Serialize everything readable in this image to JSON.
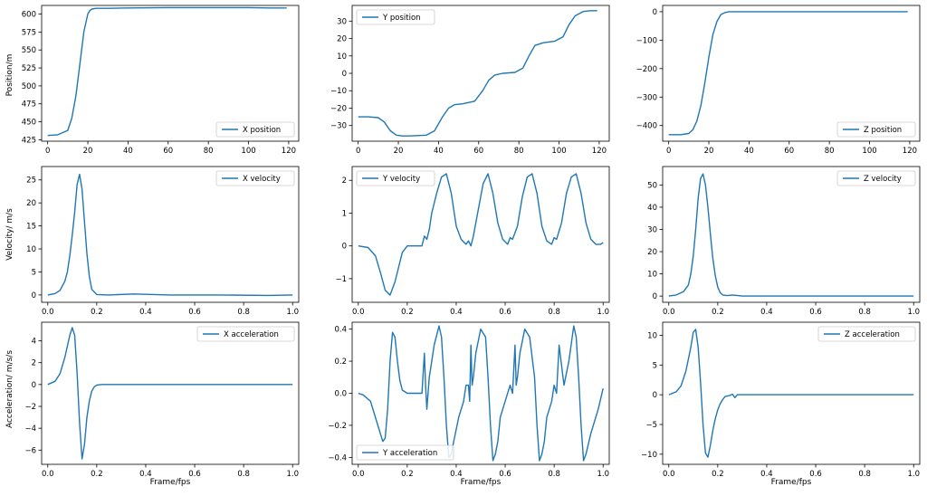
{
  "figure": {
    "row_labels": [
      "Position/m",
      "Velocity/ m/s",
      "Acceleration/ m/s/s"
    ],
    "xlabel": "Frame/fps",
    "line_color": "#1f77b4"
  },
  "chart_data": [
    {
      "id": "x-position",
      "type": "line",
      "legend": "X position",
      "legend_loc": "bottom-right",
      "xlim": [
        -3,
        125
      ],
      "ylim": [
        423,
        612
      ],
      "xticks": [
        0,
        20,
        40,
        60,
        80,
        100,
        120
      ],
      "xticklabels": [
        "0",
        "20",
        "40",
        "60",
        "80",
        "100",
        "120"
      ],
      "yticks": [
        425,
        450,
        475,
        500,
        525,
        550,
        575,
        600
      ],
      "yticklabels": [
        "425",
        "450",
        "475",
        "500",
        "525",
        "550",
        "575",
        "600"
      ],
      "x": [
        0,
        5,
        10,
        12,
        14,
        16,
        18,
        20,
        21,
        22,
        24,
        30,
        40,
        60,
        80,
        100,
        110,
        119
      ],
      "y": [
        431,
        432,
        438,
        455,
        485,
        530,
        575,
        600,
        605,
        607,
        608,
        608,
        608.5,
        609,
        609,
        609,
        608.5,
        608.5
      ]
    },
    {
      "id": "y-position",
      "type": "line",
      "legend": "Y position",
      "legend_loc": "top-left",
      "xlim": [
        -3,
        125
      ],
      "ylim": [
        -39,
        39
      ],
      "xticks": [
        0,
        20,
        40,
        60,
        80,
        100,
        120
      ],
      "xticklabels": [
        "0",
        "20",
        "40",
        "60",
        "80",
        "100",
        "120"
      ],
      "yticks": [
        -30,
        -20,
        -10,
        0,
        10,
        20,
        30
      ],
      "yticklabels": [
        "−30",
        "−20",
        "−10",
        "0",
        "10",
        "20",
        "30"
      ],
      "x": [
        0,
        5,
        10,
        13,
        16,
        19,
        22,
        26,
        34,
        38,
        42,
        45,
        48,
        52,
        58,
        62,
        65,
        68,
        72,
        78,
        82,
        85,
        88,
        92,
        98,
        102,
        105,
        108,
        112,
        116,
        119
      ],
      "y": [
        -25,
        -25,
        -25.5,
        -28,
        -33,
        -35.5,
        -36,
        -36,
        -35.5,
        -33,
        -25,
        -20,
        -18,
        -17.5,
        -16,
        -10,
        -4,
        -1,
        0,
        0.5,
        3,
        10,
        16,
        17.5,
        18.5,
        21,
        28,
        33,
        35.5,
        36,
        36
      ]
    },
    {
      "id": "z-position",
      "type": "line",
      "legend": "Z position",
      "legend_loc": "bottom-right",
      "xlim": [
        -3,
        125
      ],
      "ylim": [
        -455,
        22
      ],
      "xticks": [
        0,
        20,
        40,
        60,
        80,
        100,
        120
      ],
      "xticklabels": [
        "0",
        "20",
        "40",
        "60",
        "80",
        "100",
        "120"
      ],
      "yticks": [
        -400,
        -300,
        -200,
        -100,
        0
      ],
      "yticklabels": [
        "−400",
        "−300",
        "−200",
        "−100",
        "0"
      ],
      "x": [
        0,
        6,
        10,
        12,
        14,
        16,
        18,
        20,
        22,
        24,
        26,
        28,
        30,
        35,
        40,
        60,
        80,
        100,
        119
      ],
      "y": [
        -432,
        -432,
        -428,
        -415,
        -385,
        -330,
        -250,
        -160,
        -80,
        -35,
        -10,
        -3,
        0,
        0,
        0,
        0,
        0,
        0,
        0
      ]
    },
    {
      "id": "x-velocity",
      "type": "line",
      "legend": "X velocity",
      "legend_loc": "top-right",
      "xlim": [
        -0.025,
        1.025
      ],
      "ylim": [
        -1.6,
        27.9
      ],
      "xticks": [
        0,
        0.2,
        0.4,
        0.6,
        0.8,
        1.0
      ],
      "xticklabels": [
        "0.0",
        "0.2",
        "0.4",
        "0.6",
        "0.8",
        "1.0"
      ],
      "yticks": [
        0,
        5,
        10,
        15,
        20,
        25
      ],
      "yticklabels": [
        "0",
        "5",
        "10",
        "15",
        "20",
        "25"
      ],
      "x": [
        0,
        0.03,
        0.05,
        0.07,
        0.08,
        0.09,
        0.1,
        0.11,
        0.12,
        0.13,
        0.14,
        0.15,
        0.16,
        0.17,
        0.18,
        0.2,
        0.25,
        0.35,
        0.5,
        0.7,
        0.9,
        1.0
      ],
      "y": [
        0,
        0.3,
        1,
        3,
        5,
        8.5,
        13,
        18,
        24,
        26.2,
        23,
        16,
        9,
        4,
        1.2,
        0.1,
        0,
        0.2,
        0,
        0,
        -0.1,
        0
      ]
    },
    {
      "id": "y-velocity",
      "type": "line",
      "legend": "Y velocity",
      "legend_loc": "top-left",
      "xlim": [
        -0.025,
        1.025
      ],
      "ylim": [
        -1.72,
        2.42
      ],
      "xticks": [
        0,
        0.2,
        0.4,
        0.6,
        0.8,
        1.0
      ],
      "xticklabels": [
        "0.0",
        "0.2",
        "0.4",
        "0.6",
        "0.8",
        "1.0"
      ],
      "yticks": [
        -1,
        0,
        1,
        2
      ],
      "yticklabels": [
        "−1",
        "0",
        "1",
        "2"
      ],
      "x": [
        0,
        0.04,
        0.07,
        0.09,
        0.11,
        0.13,
        0.15,
        0.18,
        0.2,
        0.23,
        0.26,
        0.27,
        0.28,
        0.29,
        0.3,
        0.32,
        0.34,
        0.36,
        0.38,
        0.4,
        0.42,
        0.44,
        0.45,
        0.46,
        0.47,
        0.49,
        0.51,
        0.53,
        0.55,
        0.57,
        0.59,
        0.61,
        0.62,
        0.63,
        0.65,
        0.67,
        0.69,
        0.71,
        0.73,
        0.75,
        0.77,
        0.79,
        0.8,
        0.81,
        0.83,
        0.85,
        0.87,
        0.89,
        0.91,
        0.93,
        0.95,
        0.97,
        0.99,
        1.0
      ],
      "y": [
        0,
        -0.05,
        -0.3,
        -0.8,
        -1.35,
        -1.5,
        -1.1,
        -0.2,
        0,
        0,
        0,
        0.3,
        0.2,
        0.5,
        1.0,
        1.6,
        2.1,
        2.2,
        1.6,
        0.6,
        0.2,
        0.05,
        0.15,
        0,
        0.3,
        1.1,
        1.9,
        2.2,
        1.6,
        0.7,
        0.2,
        0.05,
        0.25,
        0.2,
        0.6,
        1.5,
        2.1,
        2.2,
        1.6,
        0.6,
        0.15,
        0.05,
        0.25,
        0.2,
        0.7,
        1.6,
        2.1,
        2.2,
        1.6,
        0.7,
        0.2,
        0.05,
        0.05,
        0.1
      ]
    },
    {
      "id": "z-velocity",
      "type": "line",
      "legend": "Z velocity",
      "legend_loc": "top-right",
      "xlim": [
        -0.025,
        1.025
      ],
      "ylim": [
        -2.8,
        58.3
      ],
      "xticks": [
        0,
        0.2,
        0.4,
        0.6,
        0.8,
        1.0
      ],
      "xticklabels": [
        "0.0",
        "0.2",
        "0.4",
        "0.6",
        "0.8",
        "1.0"
      ],
      "yticks": [
        0,
        10,
        20,
        30,
        40,
        50
      ],
      "yticklabels": [
        "0",
        "10",
        "20",
        "30",
        "40",
        "50"
      ],
      "x": [
        0,
        0.03,
        0.06,
        0.08,
        0.09,
        0.1,
        0.11,
        0.12,
        0.13,
        0.14,
        0.15,
        0.16,
        0.17,
        0.18,
        0.19,
        0.2,
        0.21,
        0.22,
        0.24,
        0.26,
        0.3,
        0.5,
        0.7,
        1.0
      ],
      "y": [
        0,
        0.5,
        2,
        5,
        10,
        18,
        30,
        44,
        53,
        55,
        50,
        40,
        28,
        17,
        9,
        4,
        1.5,
        0.5,
        0.2,
        0.5,
        0,
        0,
        0,
        0
      ]
    },
    {
      "id": "x-acceleration",
      "type": "line",
      "legend": "X acceleration",
      "legend_loc": "top-right",
      "xlim": [
        -0.025,
        1.025
      ],
      "ylim": [
        -7.3,
        5.7
      ],
      "xticks": [
        0,
        0.2,
        0.4,
        0.6,
        0.8,
        1.0
      ],
      "xticklabels": [
        "0.0",
        "0.2",
        "0.4",
        "0.6",
        "0.8",
        "1.0"
      ],
      "yticks": [
        -6,
        -4,
        -2,
        0,
        2,
        4
      ],
      "yticklabels": [
        "−6",
        "−4",
        "−2",
        "0",
        "2",
        "4"
      ],
      "x": [
        0,
        0.03,
        0.05,
        0.07,
        0.09,
        0.1,
        0.11,
        0.12,
        0.13,
        0.14,
        0.15,
        0.16,
        0.17,
        0.18,
        0.19,
        0.2,
        0.22,
        0.3,
        0.5,
        0.7,
        0.9,
        1.0
      ],
      "y": [
        0,
        0.3,
        1,
        2.5,
        4.5,
        5.2,
        4.5,
        1,
        -3.5,
        -6.8,
        -5.5,
        -3,
        -1.5,
        -0.6,
        -0.2,
        -0.05,
        0,
        0,
        0,
        0,
        0,
        0
      ]
    },
    {
      "id": "y-acceleration",
      "type": "line",
      "legend": "Y acceleration",
      "legend_loc": "bottom-left",
      "xlim": [
        -0.025,
        1.025
      ],
      "ylim": [
        -0.443,
        0.443
      ],
      "xticks": [
        0,
        0.2,
        0.4,
        0.6,
        0.8,
        1.0
      ],
      "xticklabels": [
        "0.0",
        "0.2",
        "0.4",
        "0.6",
        "0.8",
        "1.0"
      ],
      "yticks": [
        -0.4,
        -0.2,
        0,
        0.2,
        0.4
      ],
      "yticklabels": [
        "−0.4",
        "−0.2",
        "0.0",
        "0.2",
        "0.4"
      ],
      "x": [
        0,
        0.02,
        0.05,
        0.08,
        0.1,
        0.11,
        0.12,
        0.13,
        0.14,
        0.15,
        0.16,
        0.17,
        0.18,
        0.2,
        0.23,
        0.26,
        0.27,
        0.275,
        0.28,
        0.29,
        0.3,
        0.31,
        0.33,
        0.34,
        0.35,
        0.36,
        0.37,
        0.38,
        0.39,
        0.41,
        0.43,
        0.44,
        0.45,
        0.455,
        0.46,
        0.465,
        0.47,
        0.48,
        0.5,
        0.52,
        0.53,
        0.54,
        0.55,
        0.56,
        0.57,
        0.58,
        0.6,
        0.62,
        0.63,
        0.64,
        0.645,
        0.65,
        0.66,
        0.68,
        0.7,
        0.72,
        0.73,
        0.74,
        0.75,
        0.76,
        0.77,
        0.79,
        0.8,
        0.81,
        0.82,
        0.84,
        0.86,
        0.88,
        0.89,
        0.9,
        0.91,
        0.92,
        0.93,
        0.95,
        0.98,
        1.0
      ],
      "y": [
        0,
        -0.01,
        -0.05,
        -0.2,
        -0.3,
        -0.28,
        -0.1,
        0.2,
        0.38,
        0.35,
        0.2,
        0.08,
        0.02,
        0,
        0,
        0,
        0.25,
        0.05,
        -0.1,
        0.1,
        0.2,
        0.3,
        0.42,
        0.35,
        0.1,
        -0.2,
        -0.4,
        -0.38,
        -0.3,
        -0.15,
        -0.05,
        0.05,
        0.05,
        -0.05,
        0.3,
        0.05,
        0.1,
        0.25,
        0.4,
        0.35,
        0.1,
        -0.2,
        -0.42,
        -0.38,
        -0.3,
        -0.15,
        -0.05,
        0.05,
        0,
        0.3,
        0.05,
        0.1,
        0.25,
        0.4,
        0.35,
        0.1,
        -0.2,
        -0.42,
        -0.38,
        -0.3,
        -0.15,
        -0.05,
        0.05,
        0,
        0.3,
        0.05,
        0.2,
        0.42,
        0.35,
        0.1,
        -0.2,
        -0.42,
        -0.38,
        -0.25,
        -0.1,
        0.03
      ]
    },
    {
      "id": "z-acceleration",
      "type": "line",
      "legend": "Z acceleration",
      "legend_loc": "top-right",
      "xlim": [
        -0.025,
        1.025
      ],
      "ylim": [
        -11.7,
        12.2
      ],
      "xticks": [
        0,
        0.2,
        0.4,
        0.6,
        0.8,
        1.0
      ],
      "xticklabels": [
        "0.0",
        "0.2",
        "0.4",
        "0.6",
        "0.8",
        "1.0"
      ],
      "yticks": [
        -10,
        -5,
        0,
        5,
        10
      ],
      "yticklabels": [
        "−10",
        "−5",
        "0",
        "5",
        "10"
      ],
      "x": [
        0,
        0.03,
        0.05,
        0.07,
        0.09,
        0.1,
        0.11,
        0.12,
        0.13,
        0.14,
        0.15,
        0.16,
        0.17,
        0.18,
        0.19,
        0.2,
        0.21,
        0.22,
        0.23,
        0.24,
        0.25,
        0.26,
        0.27,
        0.28,
        0.3,
        0.5,
        0.7,
        1.0
      ],
      "y": [
        0,
        0.5,
        1.5,
        4,
        8,
        10.5,
        11,
        8,
        2,
        -5,
        -9.8,
        -10.5,
        -8.5,
        -6,
        -4,
        -2.5,
        -1.5,
        -0.8,
        -0.3,
        -0.2,
        -0.1,
        0.1,
        -0.5,
        0,
        0,
        0,
        0,
        0
      ]
    }
  ]
}
